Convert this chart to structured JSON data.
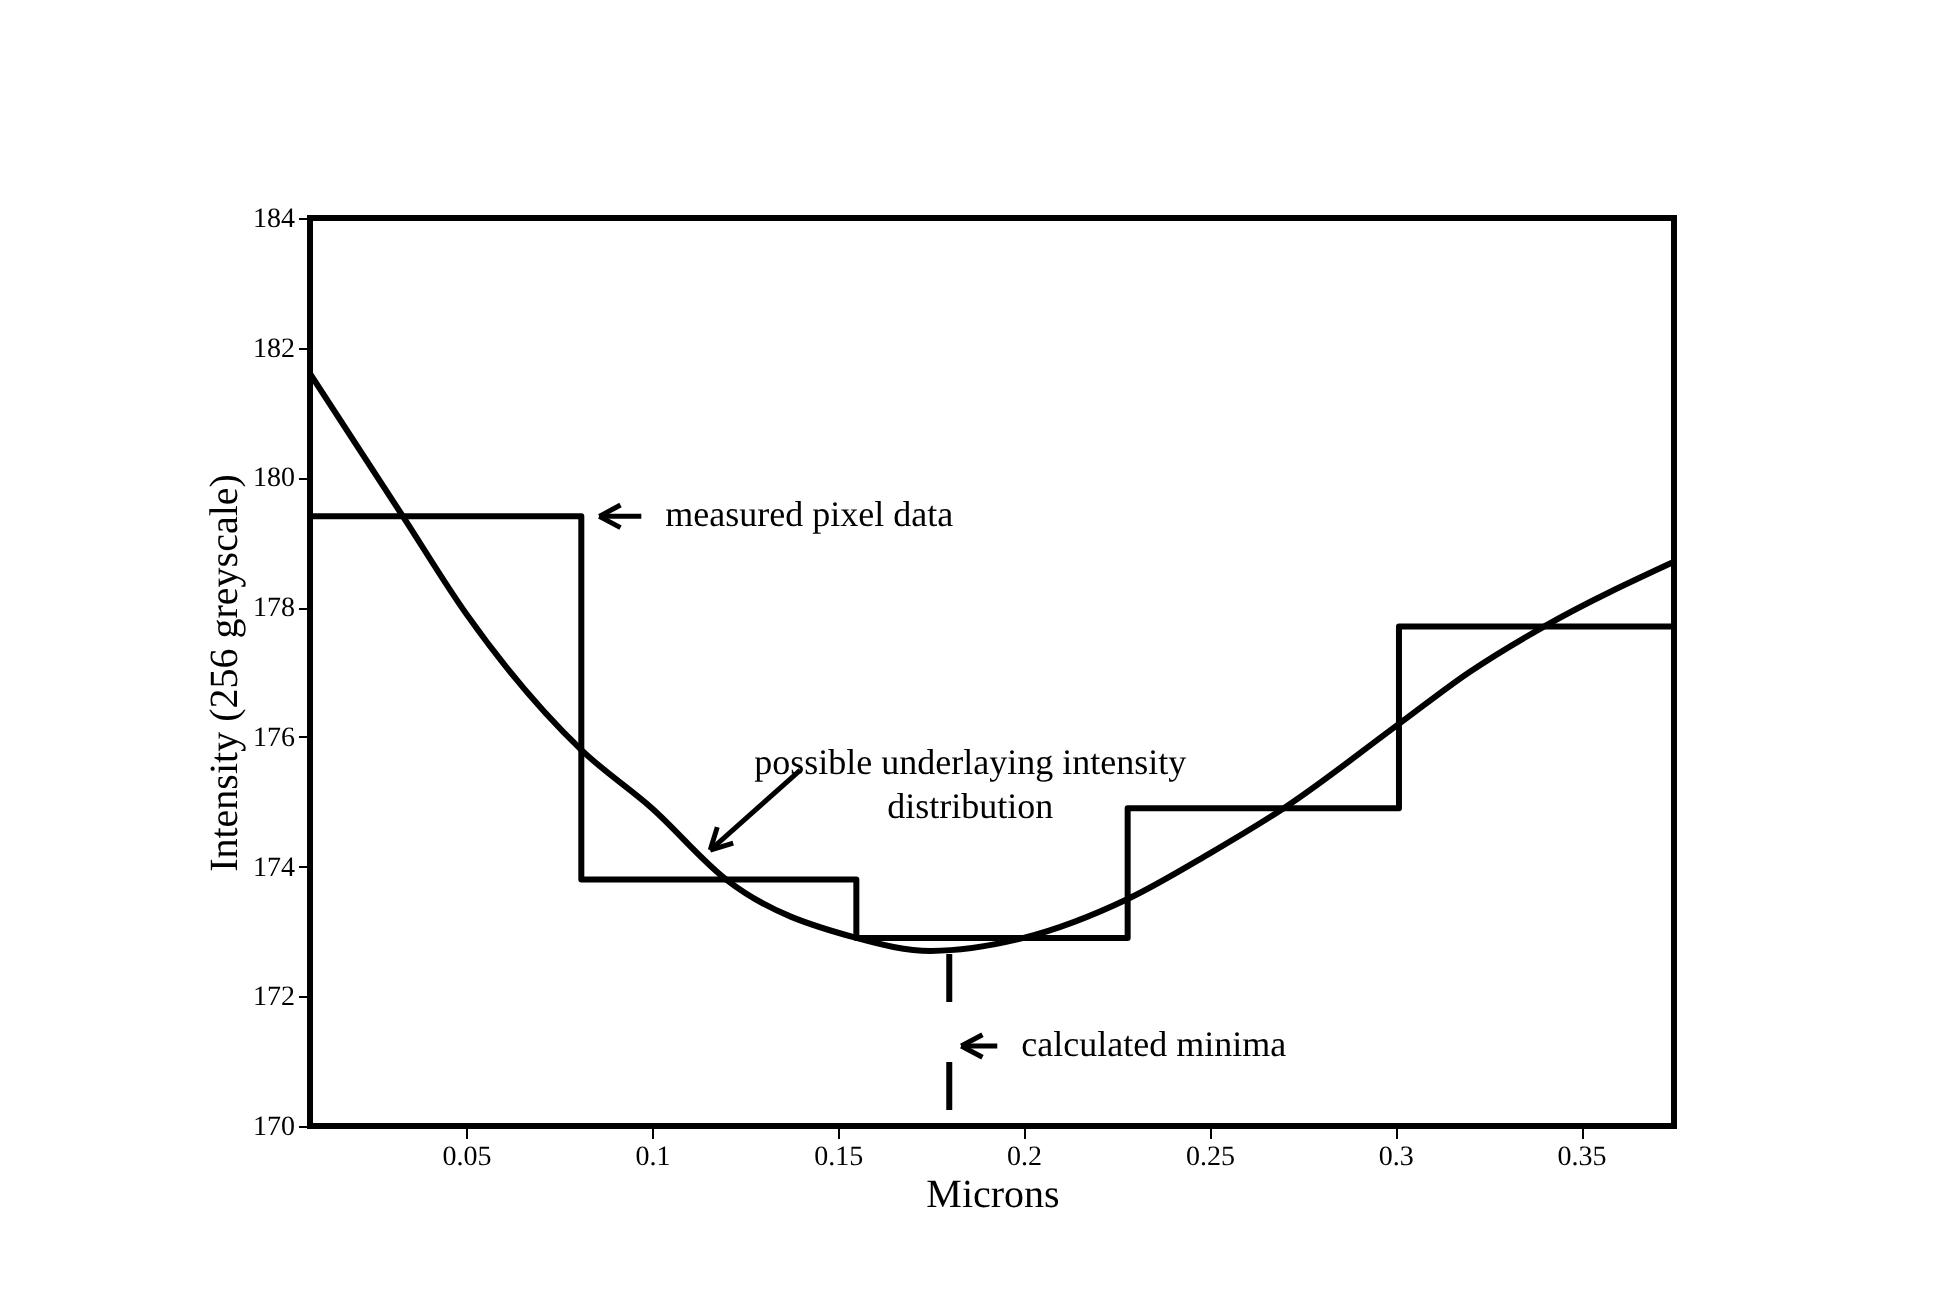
{
  "chart_data": {
    "type": "line",
    "xlabel": "Microns",
    "ylabel": "Intensity (256 greyscale)",
    "xlim": [
      0.008,
      0.375
    ],
    "ylim": [
      170,
      184
    ],
    "xticks": [
      0.05,
      0.1,
      0.15,
      0.2,
      0.25,
      0.3,
      0.35
    ],
    "yticks": [
      170,
      172,
      174,
      176,
      178,
      180,
      182,
      184
    ],
    "grid": false,
    "marker": "none",
    "line_style": "solid",
    "series": [
      {
        "type": "step",
        "color": "#000000",
        "x": [
          0.008,
          0.081,
          0.155,
          0.228,
          0.301,
          0.375
        ],
        "values": [
          179.4,
          173.8,
          172.9,
          174.9,
          177.7,
          177.7
        ]
      },
      {
        "type": "line",
        "color": "#000000",
        "x": [
          0.008,
          0.033,
          0.05,
          0.081,
          0.1,
          0.12,
          0.155,
          0.175,
          0.2,
          0.228,
          0.25,
          0.27,
          0.301,
          0.32,
          0.34,
          0.375
        ],
        "values": [
          181.6,
          179.4,
          177.9,
          175.8,
          174.9,
          173.8,
          172.9,
          172.7,
          172.9,
          173.5,
          174.2,
          174.9,
          176.2,
          177.0,
          177.7,
          178.7
        ]
      }
    ],
    "ref_lines": [
      {
        "axis": "x",
        "value": 0.18,
        "label": "calculated minima",
        "line_style": "dashed",
        "color": "#000000"
      }
    ],
    "annotations": [
      {
        "text": "measured pixel data",
        "x": 0.081,
        "y": 179.4
      },
      {
        "text": "possible underlaying intensity distribution",
        "x": 0.113,
        "y": 174.1
      }
    ]
  }
}
